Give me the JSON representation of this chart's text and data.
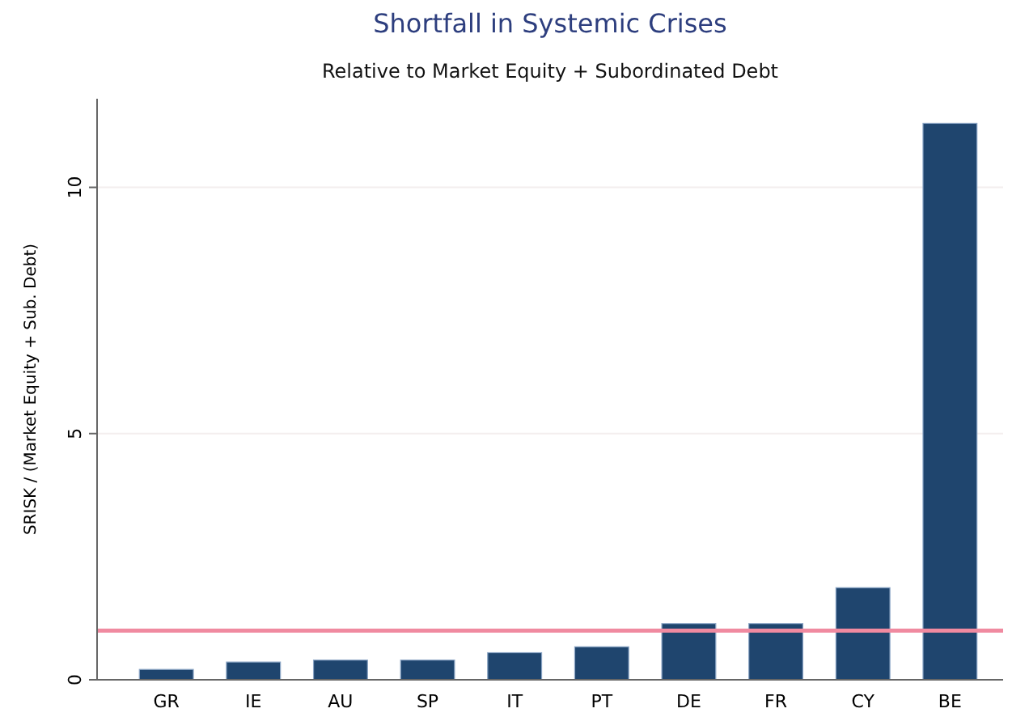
{
  "chart_data": {
    "type": "bar",
    "title": "Shortfall in Systemic Crises",
    "subtitle": "Relative to Market Equity + Subordinated Debt",
    "ylabel": "SRISK / (Market Equity + Sub. Debt)",
    "categories": [
      "GR",
      "IE",
      "AU",
      "SP",
      "IT",
      "PT",
      "DE",
      "FR",
      "CY",
      "BE"
    ],
    "values": [
      0.21,
      0.36,
      0.4,
      0.4,
      0.55,
      0.67,
      1.14,
      1.14,
      1.87,
      11.3
    ],
    "color": "#1f456e",
    "ylim": [
      0,
      11.8
    ],
    "yticks": [
      0,
      5,
      10
    ],
    "grid": "y",
    "ref_lines": [
      {
        "axis": "y",
        "value": 1,
        "color": "#f08aa0"
      }
    ]
  }
}
